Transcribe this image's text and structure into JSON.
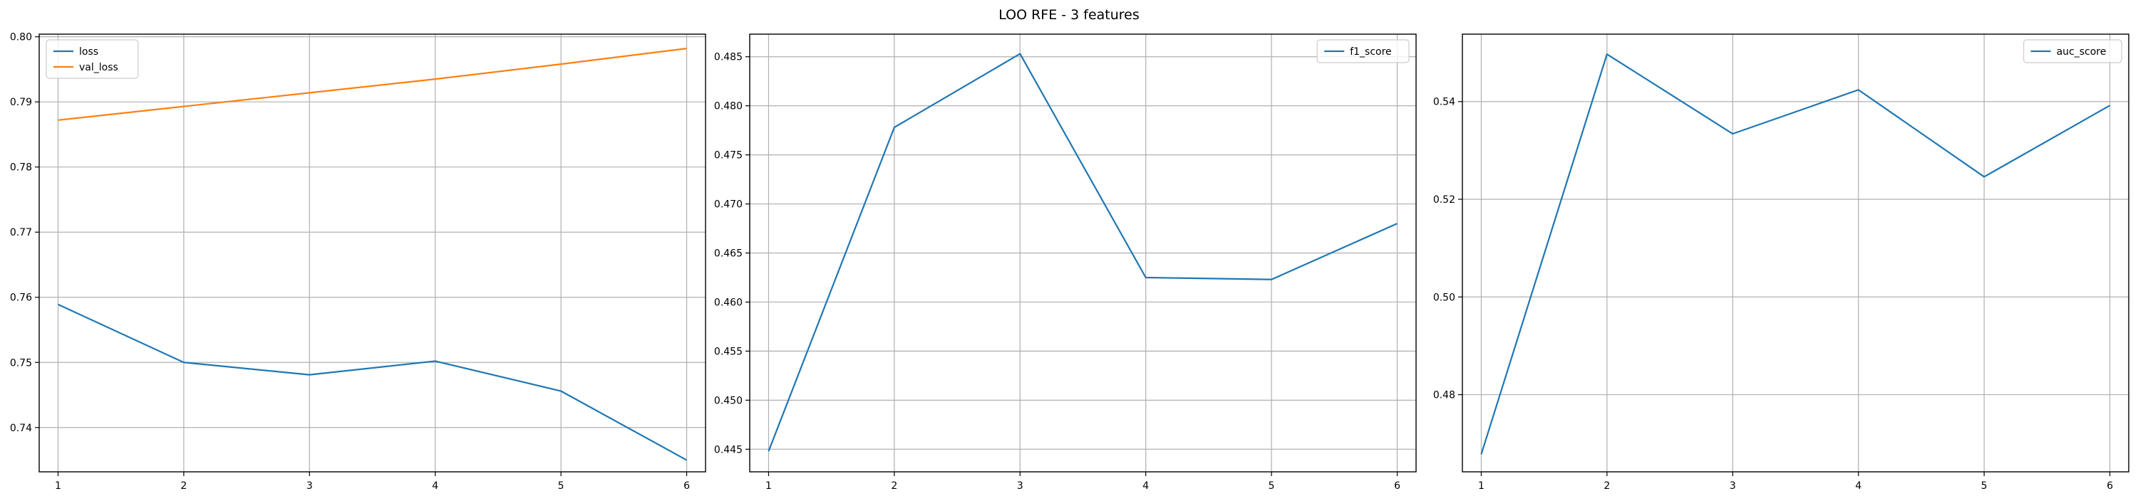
{
  "figure_title": "LOO RFE - 3 features",
  "colors": {
    "blue": "#1f77b4",
    "orange": "#ff7f0e",
    "grid": "#b0b0b0",
    "frame": "#000000"
  },
  "chart_data": [
    {
      "type": "line",
      "x": [
        1,
        2,
        3,
        4,
        5,
        6
      ],
      "series": [
        {
          "name": "loss",
          "color": "#1f77b4",
          "values": [
            0.7589,
            0.75,
            0.7481,
            0.7502,
            0.7456,
            0.735
          ]
        },
        {
          "name": "val_loss",
          "color": "#ff7f0e",
          "values": [
            0.7872,
            0.7893,
            0.7914,
            0.7935,
            0.7958,
            0.7982
          ]
        }
      ],
      "xlim": [
        0.85,
        6.15
      ],
      "ylim": [
        0.7332,
        0.8004
      ],
      "xticks": [
        1,
        2,
        3,
        4,
        5,
        6
      ],
      "yticks": [
        0.74,
        0.75,
        0.76,
        0.77,
        0.78,
        0.79,
        0.8
      ],
      "ytick_labels": [
        "0.74",
        "0.75",
        "0.76",
        "0.77",
        "0.78",
        "0.79",
        "0.80"
      ],
      "grid": true,
      "legend": "upper-left"
    },
    {
      "type": "line",
      "x": [
        1,
        2,
        3,
        4,
        5,
        6
      ],
      "series": [
        {
          "name": "f1_score",
          "color": "#1f77b4",
          "values": [
            0.4448,
            0.4778,
            0.4853,
            0.4625,
            0.4623,
            0.468
          ]
        }
      ],
      "xlim": [
        0.85,
        6.15
      ],
      "ylim": [
        0.4427,
        0.4873
      ],
      "xticks": [
        1,
        2,
        3,
        4,
        5,
        6
      ],
      "yticks": [
        0.445,
        0.45,
        0.455,
        0.46,
        0.465,
        0.47,
        0.475,
        0.48,
        0.485
      ],
      "ytick_labels": [
        "0.445",
        "0.450",
        "0.455",
        "0.460",
        "0.465",
        "0.470",
        "0.475",
        "0.480",
        "0.485"
      ],
      "grid": true,
      "legend": "upper-right"
    },
    {
      "type": "line",
      "x": [
        1,
        2,
        3,
        4,
        5,
        6
      ],
      "series": [
        {
          "name": "auc_score",
          "color": "#1f77b4",
          "values": [
            0.4678,
            0.5497,
            0.5334,
            0.5424,
            0.5246,
            0.5392
          ]
        }
      ],
      "xlim": [
        0.85,
        6.15
      ],
      "ylim": [
        0.4642,
        0.5538
      ],
      "xticks": [
        1,
        2,
        3,
        4,
        5,
        6
      ],
      "yticks": [
        0.48,
        0.5,
        0.52,
        0.54
      ],
      "ytick_labels": [
        "0.48",
        "0.50",
        "0.52",
        "0.54"
      ],
      "grid": true,
      "legend": "upper-right"
    }
  ]
}
